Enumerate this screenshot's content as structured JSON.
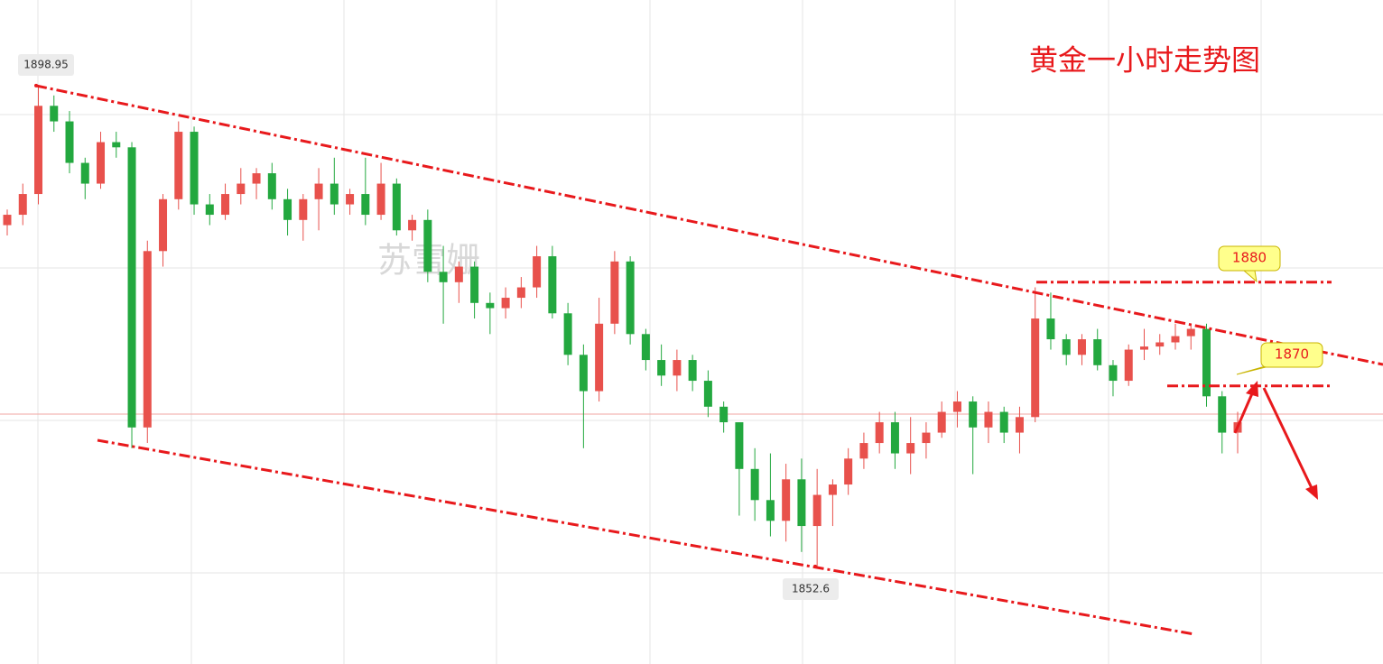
{
  "chart_data": {
    "type": "candlestick",
    "title": "黄金一小时走势图",
    "watermark": "苏雪姗",
    "ylim": [
      1843.2,
      1907.2
    ],
    "high_label": 1898.95,
    "low_label": 1852.6,
    "levels": [
      1880,
      1870
    ],
    "up_color": "#e8514c",
    "down_color": "#23a83f",
    "candles": [
      [
        1885.5,
        1887,
        1884.5,
        1886.5
      ],
      [
        1886.5,
        1889.5,
        1885.5,
        1888.5
      ],
      [
        1888.5,
        1898.95,
        1887.5,
        1897
      ],
      [
        1897,
        1898,
        1894.5,
        1895.5
      ],
      [
        1895.5,
        1896.5,
        1890.5,
        1891.5
      ],
      [
        1891.5,
        1892,
        1888,
        1889.5
      ],
      [
        1889.5,
        1894.5,
        1889,
        1893.5
      ],
      [
        1893.5,
        1894.5,
        1892,
        1893
      ],
      [
        1893,
        1893.5,
        1864,
        1866
      ],
      [
        1866,
        1884,
        1864.5,
        1883
      ],
      [
        1883,
        1888.5,
        1881.5,
        1888
      ],
      [
        1888,
        1895.5,
        1887,
        1894.5
      ],
      [
        1894.5,
        1895,
        1886.5,
        1887.5
      ],
      [
        1887.5,
        1888.5,
        1885.5,
        1886.5
      ],
      [
        1886.5,
        1889.5,
        1886,
        1888.5
      ],
      [
        1888.5,
        1891,
        1887.5,
        1889.5
      ],
      [
        1889.5,
        1891,
        1888,
        1890.5
      ],
      [
        1890.5,
        1891.5,
        1887,
        1888
      ],
      [
        1888,
        1889,
        1884.5,
        1886
      ],
      [
        1886,
        1888.5,
        1884,
        1888
      ],
      [
        1888,
        1891,
        1885,
        1889.5
      ],
      [
        1889.5,
        1892,
        1886.5,
        1887.5
      ],
      [
        1887.5,
        1889,
        1886.5,
        1888.5
      ],
      [
        1888.5,
        1892,
        1885.5,
        1886.5
      ],
      [
        1886.5,
        1891.5,
        1886,
        1889.5
      ],
      [
        1889.5,
        1890,
        1884.5,
        1885
      ],
      [
        1885,
        1886.5,
        1884,
        1886
      ],
      [
        1886,
        1887,
        1880,
        1881
      ],
      [
        1881,
        1883.5,
        1876,
        1880
      ],
      [
        1880,
        1882,
        1878,
        1881.5
      ],
      [
        1881.5,
        1882,
        1876.5,
        1878
      ],
      [
        1878,
        1879,
        1875,
        1877.5
      ],
      [
        1877.5,
        1879.5,
        1876.5,
        1878.5
      ],
      [
        1878.5,
        1880.5,
        1877.5,
        1879.5
      ],
      [
        1879.5,
        1883.5,
        1878.5,
        1882.5
      ],
      [
        1882.5,
        1883.5,
        1876.5,
        1877
      ],
      [
        1877,
        1878,
        1872,
        1873
      ],
      [
        1873,
        1874,
        1864,
        1869.5
      ],
      [
        1869.5,
        1878.5,
        1868.5,
        1876
      ],
      [
        1876,
        1883,
        1875,
        1882
      ],
      [
        1882,
        1882.5,
        1874,
        1875
      ],
      [
        1875,
        1875.5,
        1871.5,
        1872.5
      ],
      [
        1872.5,
        1874,
        1870,
        1871
      ],
      [
        1871,
        1873.5,
        1869.5,
        1872.5
      ],
      [
        1872.5,
        1873,
        1869.5,
        1870.5
      ],
      [
        1870.5,
        1871.5,
        1867,
        1868
      ],
      [
        1868,
        1868.5,
        1865.5,
        1866.5
      ],
      [
        1866.5,
        1866.5,
        1857.5,
        1862
      ],
      [
        1862,
        1864,
        1857,
        1859
      ],
      [
        1859,
        1863.5,
        1855.5,
        1857
      ],
      [
        1857,
        1862.5,
        1855,
        1861
      ],
      [
        1861,
        1863,
        1854,
        1856.5
      ],
      [
        1856.5,
        1862,
        1852.6,
        1859.5
      ],
      [
        1859.5,
        1861,
        1856.5,
        1860.5
      ],
      [
        1860.5,
        1864,
        1859.5,
        1863
      ],
      [
        1863,
        1865.5,
        1862,
        1864.5
      ],
      [
        1864.5,
        1867.5,
        1863.5,
        1866.5
      ],
      [
        1866.5,
        1867.5,
        1862,
        1863.5
      ],
      [
        1863.5,
        1867,
        1861.5,
        1864.5
      ],
      [
        1864.5,
        1866.5,
        1863,
        1865.5
      ],
      [
        1865.5,
        1868.5,
        1865,
        1867.5
      ],
      [
        1867.5,
        1869.5,
        1866,
        1868.5
      ],
      [
        1868.5,
        1869,
        1861.5,
        1866
      ],
      [
        1866,
        1868.5,
        1864.5,
        1867.5
      ],
      [
        1867.5,
        1868,
        1864.5,
        1865.5
      ],
      [
        1865.5,
        1868,
        1863.5,
        1867
      ],
      [
        1867,
        1879.5,
        1866.5,
        1876.5
      ],
      [
        1876.5,
        1879,
        1873.5,
        1874.5
      ],
      [
        1874.5,
        1875,
        1872,
        1873
      ],
      [
        1873,
        1875,
        1872,
        1874.5
      ],
      [
        1874.5,
        1875.5,
        1871.5,
        1872
      ],
      [
        1872,
        1872.5,
        1869,
        1870.5
      ],
      [
        1870.5,
        1874,
        1870,
        1873.5
      ],
      [
        1873.5,
        1875.5,
        1872.5,
        1873.8
      ],
      [
        1873.8,
        1875,
        1873,
        1874.2
      ],
      [
        1874.2,
        1876,
        1873.5,
        1874.8
      ],
      [
        1874.8,
        1876,
        1873.5,
        1875.5
      ],
      [
        1875.5,
        1876,
        1868,
        1869
      ],
      [
        1869,
        1869.5,
        1863.5,
        1865.5
      ],
      [
        1865.5,
        1867.5,
        1863.5,
        1866.5
      ]
    ]
  }
}
